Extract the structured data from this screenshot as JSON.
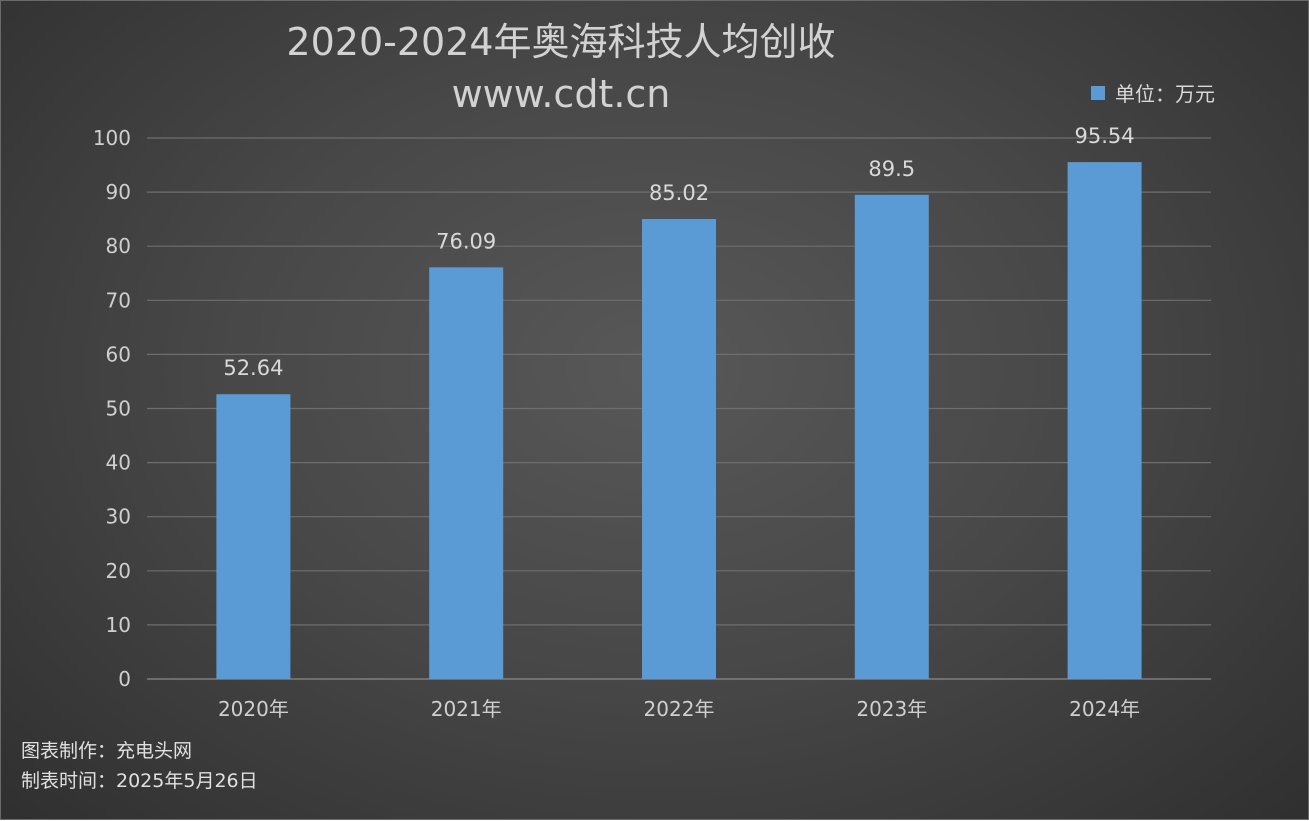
{
  "chart_data": {
    "type": "bar",
    "title": "2020-2024年奥海科技人均创收",
    "subtitle": "www.cdt.cn",
    "categories": [
      "2020年",
      "2021年",
      "2022年",
      "2023年",
      "2024年"
    ],
    "series": [
      {
        "name": "单位：万元",
        "values": [
          52.64,
          76.09,
          85.02,
          89.5,
          95.54
        ],
        "color": "#5b9bd5"
      }
    ],
    "data_labels": [
      "52.64",
      "76.09",
      "85.02",
      "89.5",
      "95.54"
    ],
    "ylim": [
      0,
      100
    ],
    "yticks": [
      0,
      10,
      20,
      30,
      40,
      50,
      60,
      70,
      80,
      90,
      100
    ],
    "grid": true,
    "legend_position": "top-right",
    "xlabel": "",
    "ylabel": ""
  },
  "footer": {
    "line1": "图表制作：充电头网",
    "line2": "制表时间：2025年5月26日"
  }
}
